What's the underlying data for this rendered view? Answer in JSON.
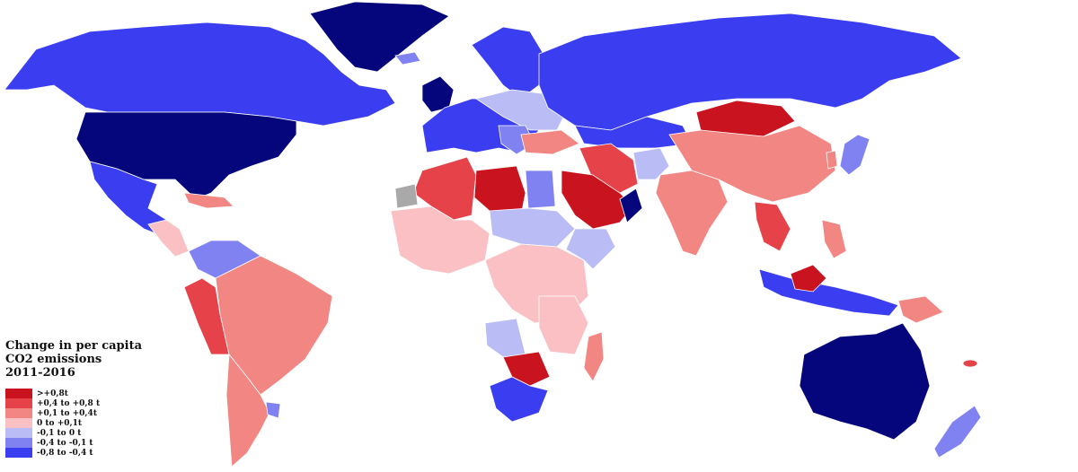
{
  "legend": {
    "title_lines": [
      "Change in per capita",
      "CO2 emissions",
      "2011-2016"
    ],
    "items": [
      {
        "label": ">+0,8t",
        "color": "#c9141f"
      },
      {
        "label": "+0,4 to +0,8 t",
        "color": "#e5424a"
      },
      {
        "label": "+0,1 to +0,4t",
        "color": "#f28683"
      },
      {
        "label": "0 to +0,1t",
        "color": "#fac0c3"
      },
      {
        "label": "-0,1 to 0 t",
        "color": "#babdf5"
      },
      {
        "label": "-0,4 to -0,1 t",
        "color": "#7f82f0"
      },
      {
        "label": "-0,8 to -0,4 t",
        "color": "#3a3ef0"
      }
    ]
  },
  "colors": {
    "gt_0_8": "#c9141f",
    "p04_08": "#e5424a",
    "p01_04": "#f28683",
    "p0_01": "#fac0c3",
    "n01_0": "#babdf5",
    "n04_01": "#7f82f0",
    "n08_04": "#3a3ef0",
    "lt_n08": "#05067c",
    "no_data": "#a9a9a9",
    "ocean": "#ffffff"
  }
}
